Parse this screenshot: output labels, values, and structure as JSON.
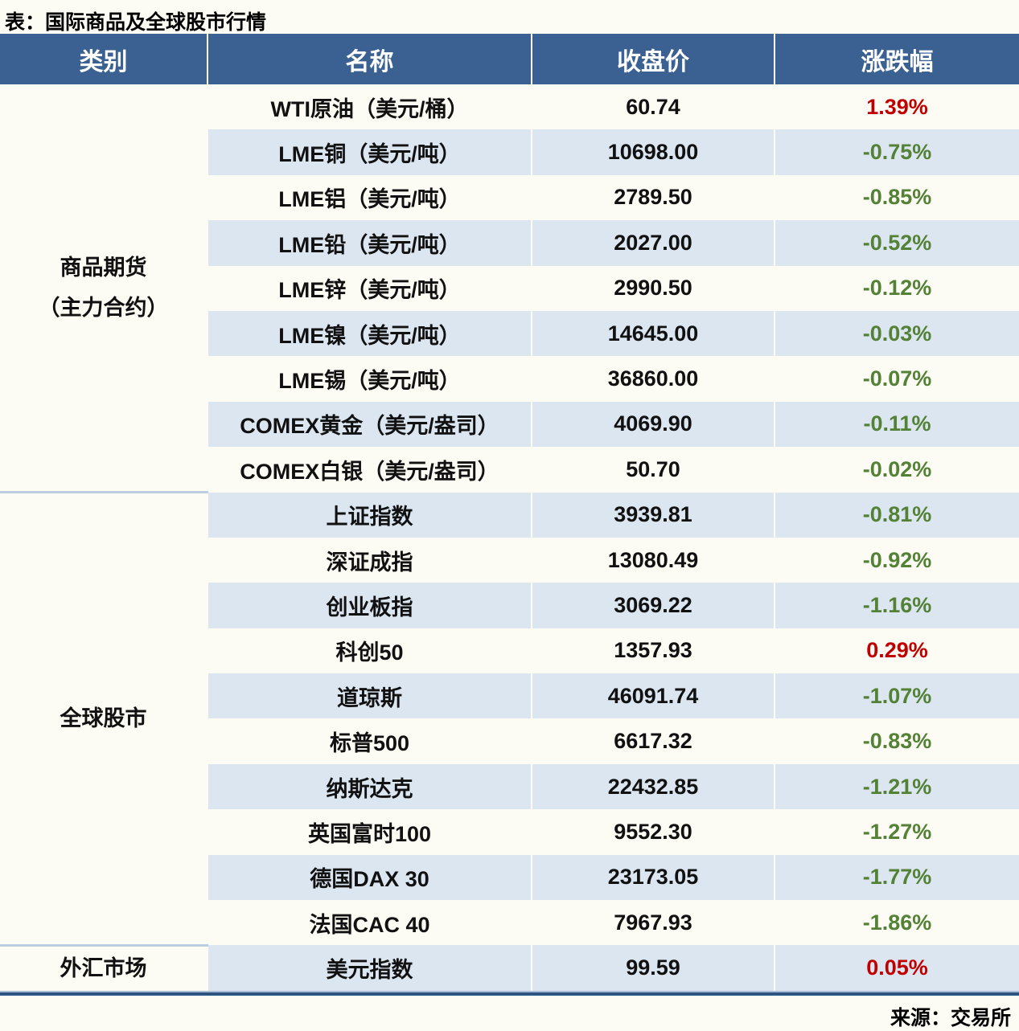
{
  "page": {
    "title": "表：国际商品及全球股市行情",
    "source": "来源：交易所"
  },
  "colors": {
    "header_bg": "#3a6191",
    "row_alt_bg": "#dce6f1",
    "up_red": "#c00000",
    "down_green": "#538135",
    "bottom_line": "#2d5380",
    "divider": "#bccee0"
  },
  "table": {
    "columns": [
      "类别",
      "名称",
      "收盘价",
      "涨跌幅"
    ],
    "groups": [
      {
        "category": [
          "商品期货",
          "（主力合约）"
        ],
        "rows": [
          {
            "name": "WTI原油（美元/桶）",
            "close": "60.74",
            "change": "1.39%",
            "direction": "up"
          },
          {
            "name": "LME铜（美元/吨）",
            "close": "10698.00",
            "change": "-0.75%",
            "direction": "down"
          },
          {
            "name": "LME铝（美元/吨）",
            "close": "2789.50",
            "change": "-0.85%",
            "direction": "down"
          },
          {
            "name": "LME铅（美元/吨）",
            "close": "2027.00",
            "change": "-0.52%",
            "direction": "down"
          },
          {
            "name": "LME锌（美元/吨）",
            "close": "2990.50",
            "change": "-0.12%",
            "direction": "down"
          },
          {
            "name": "LME镍（美元/吨）",
            "close": "14645.00",
            "change": "-0.03%",
            "direction": "down"
          },
          {
            "name": "LME锡（美元/吨）",
            "close": "36860.00",
            "change": "-0.07%",
            "direction": "down"
          },
          {
            "name": "COMEX黄金（美元/盎司）",
            "close": "4069.90",
            "change": "-0.11%",
            "direction": "down"
          },
          {
            "name": "COMEX白银（美元/盎司）",
            "close": "50.70",
            "change": "-0.02%",
            "direction": "down"
          }
        ]
      },
      {
        "category": [
          "全球股市"
        ],
        "rows": [
          {
            "name": "上证指数",
            "close": "3939.81",
            "change": "-0.81%",
            "direction": "down"
          },
          {
            "name": "深证成指",
            "close": "13080.49",
            "change": "-0.92%",
            "direction": "down"
          },
          {
            "name": "创业板指",
            "close": "3069.22",
            "change": "-1.16%",
            "direction": "down"
          },
          {
            "name": "科创50",
            "close": "1357.93",
            "change": "0.29%",
            "direction": "up"
          },
          {
            "name": "道琼斯",
            "close": "46091.74",
            "change": "-1.07%",
            "direction": "down"
          },
          {
            "name": "标普500",
            "close": "6617.32",
            "change": "-0.83%",
            "direction": "down"
          },
          {
            "name": "纳斯达克",
            "close": "22432.85",
            "change": "-1.21%",
            "direction": "down"
          },
          {
            "name": "英国富时100",
            "close": "9552.30",
            "change": "-1.27%",
            "direction": "down"
          },
          {
            "name": "德国DAX 30",
            "close": "23173.05",
            "change": "-1.77%",
            "direction": "down"
          },
          {
            "name": "法国CAC 40",
            "close": "7967.93",
            "change": "-1.86%",
            "direction": "down"
          }
        ]
      },
      {
        "category": [
          "外汇市场"
        ],
        "rows": [
          {
            "name": "美元指数",
            "close": "99.59",
            "change": "0.05%",
            "direction": "up"
          }
        ]
      }
    ]
  }
}
